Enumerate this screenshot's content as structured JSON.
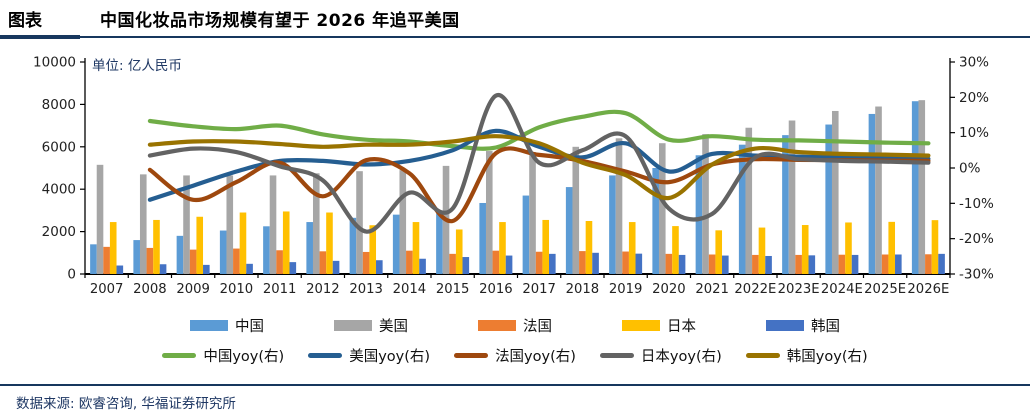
{
  "header": {
    "tag": "图表",
    "title": "中国化妆品市场规模有望于 2026 年追平美国"
  },
  "chart": {
    "unit_label": "单位: 亿人民币"
  },
  "footer": {
    "source": "数据来源: 欧睿咨询, 华福证券研究所"
  },
  "chart_data": {
    "type": "bar+line",
    "title": "中国化妆品市场规模有望于 2026 年追平美国",
    "unit": "亿人民币",
    "categories": [
      "2007",
      "2008",
      "2009",
      "2010",
      "2011",
      "2012",
      "2013",
      "2014",
      "2015",
      "2016",
      "2017",
      "2018",
      "2019",
      "2020",
      "2021",
      "2022E",
      "2023E",
      "2024E",
      "2025E",
      "2026E"
    ],
    "left_axis": {
      "label": "亿人民币",
      "min": 0,
      "max": 10000,
      "step": 2000,
      "ticks": [
        "0",
        "2000",
        "4000",
        "6000",
        "8000",
        "10000"
      ]
    },
    "right_axis": {
      "label": "yoy",
      "min": -30,
      "max": 30,
      "step": 10,
      "ticks": [
        "-30%",
        "-20%",
        "-10%",
        "0%",
        "10%",
        "20%",
        "30%"
      ]
    },
    "grid": false,
    "legend_position": "bottom",
    "bar_series": [
      {
        "name": "中国",
        "color": "#5B9BD5",
        "values": [
          1400,
          1600,
          1800,
          2050,
          2250,
          2450,
          2650,
          2800,
          2950,
          3350,
          3700,
          4100,
          4650,
          5000,
          5600,
          6100,
          6550,
          7050,
          7550,
          8150
        ]
      },
      {
        "name": "美国",
        "color": "#A6A6A6",
        "values": [
          5150,
          4700,
          4650,
          4650,
          4650,
          4750,
          4850,
          4900,
          5100,
          5800,
          5750,
          6000,
          6400,
          6170,
          6600,
          6900,
          7240,
          7690,
          7900,
          8200
        ]
      },
      {
        "name": "法国",
        "color": "#ED7D31",
        "values": [
          1280,
          1230,
          1150,
          1200,
          1120,
          1070,
          1040,
          1100,
          950,
          1100,
          1050,
          1080,
          1060,
          950,
          920,
          900,
          900,
          910,
          920,
          930
        ]
      },
      {
        "name": "日本",
        "color": "#FFC000",
        "values": [
          2450,
          2550,
          2700,
          2900,
          2950,
          2900,
          2300,
          2450,
          2100,
          2450,
          2550,
          2500,
          2450,
          2260,
          2060,
          2190,
          2310,
          2430,
          2460,
          2540
        ]
      },
      {
        "name": "韩国",
        "color": "#4472C4",
        "values": [
          400,
          460,
          430,
          480,
          560,
          620,
          650,
          720,
          800,
          870,
          950,
          1000,
          960,
          900,
          870,
          850,
          880,
          900,
          920,
          950
        ]
      }
    ],
    "line_series": [
      {
        "name": "中国yoy(右)",
        "color": "#70AD47",
        "values": [
          null,
          13.3,
          11.8,
          11,
          12,
          9.5,
          8,
          7.5,
          6.2,
          5.8,
          11.5,
          14.5,
          15.5,
          8,
          9,
          8,
          7.8,
          7.5,
          7.2,
          7
        ]
      },
      {
        "name": "美国yoy(右)",
        "color": "#255E91",
        "values": [
          null,
          -9,
          -5,
          -1,
          2,
          2,
          1,
          2,
          5,
          10.5,
          6,
          3,
          7,
          -1,
          4,
          3.5,
          3.2,
          3,
          2.8,
          2.6
        ]
      },
      {
        "name": "法国yoy(右)",
        "color": "#9E480E",
        "values": [
          null,
          -0.5,
          -9,
          -4,
          1.5,
          -8,
          2.2,
          -1.5,
          -15,
          4.2,
          3.7,
          2,
          -1,
          -4,
          1,
          2.5,
          2.3,
          2.2,
          2.1,
          2
        ]
      },
      {
        "name": "日本yoy(右)",
        "color": "#636363",
        "values": [
          null,
          3.5,
          5.5,
          4.5,
          0.5,
          -3.5,
          -18,
          -7,
          -11.5,
          20.5,
          1.5,
          5,
          9,
          -11.5,
          -13,
          3,
          2.5,
          2,
          1.8,
          1.5
        ]
      },
      {
        "name": "韩国yoy(右)",
        "color": "#997300",
        "values": [
          null,
          6.6,
          7.5,
          7.5,
          6.8,
          6,
          6.6,
          6.6,
          7.5,
          9,
          7,
          1.5,
          -2,
          -8.5,
          1,
          5.5,
          4.5,
          4,
          3.8,
          3.5
        ]
      }
    ]
  }
}
